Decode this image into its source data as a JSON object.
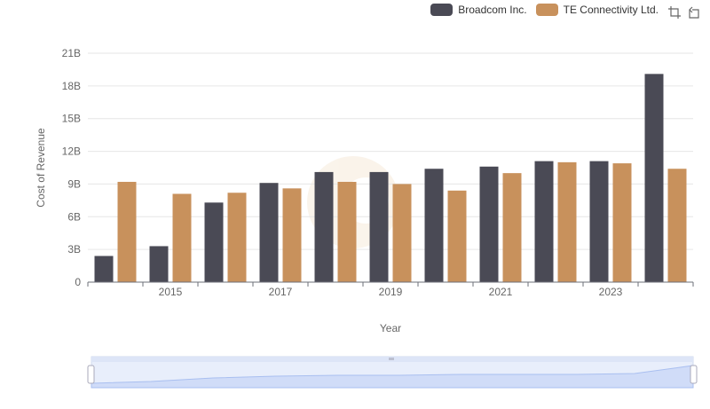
{
  "chart_data": {
    "type": "bar",
    "title": "",
    "xlabel": "Year",
    "ylabel": "Cost of Revenue",
    "x": [
      2014,
      2015,
      2016,
      2017,
      2018,
      2019,
      2020,
      2021,
      2022,
      2023,
      2024
    ],
    "x_tick_labels": [
      "2015",
      "2017",
      "2019",
      "2021",
      "2023"
    ],
    "y_tick_labels": [
      "0",
      "3B",
      "6B",
      "9B",
      "12B",
      "15B",
      "18B",
      "21B"
    ],
    "ylim": [
      0,
      21000000000
    ],
    "grid": true,
    "legend_position": "top-right",
    "series": [
      {
        "name": "Broadcom Inc.",
        "color": "#4a4a55",
        "values": [
          2400000000,
          3300000000,
          7300000000,
          9100000000,
          10100000000,
          10100000000,
          10400000000,
          10600000000,
          11100000000,
          11100000000,
          19100000000
        ]
      },
      {
        "name": "TE Connectivity Ltd.",
        "color": "#c8915c",
        "values": [
          9200000000,
          8100000000,
          8200000000,
          8600000000,
          9200000000,
          9000000000,
          8400000000,
          10000000000,
          11000000000,
          10900000000,
          10400000000
        ]
      }
    ]
  },
  "toolbox": {
    "zoom_icon": "zoom-icon",
    "restore_icon": "restore-icon"
  }
}
